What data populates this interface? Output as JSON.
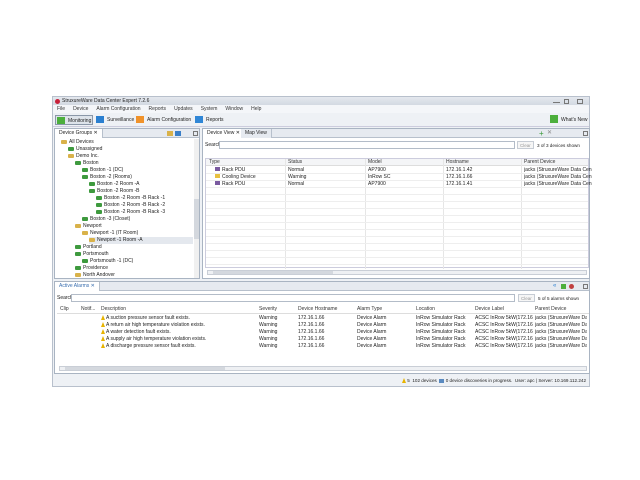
{
  "window": {
    "title": "StruxureWare Data Center Expert 7.2.6"
  },
  "menu": [
    "File",
    "Device",
    "Alarm Configuration",
    "Reports",
    "Updates",
    "System",
    "Window",
    "Help"
  ],
  "toolbar": {
    "monitoring": "Monitoring",
    "surveillance": "Surveillance",
    "alarm_config": "Alarm Configuration",
    "reports": "Reports",
    "whats_new": "What's New"
  },
  "device_groups": {
    "tab": "Device Groups",
    "items": [
      {
        "label": "All Devices",
        "level": 0
      },
      {
        "label": "Unassigned",
        "level": 1,
        "green": true
      },
      {
        "label": "Demo Inc.",
        "level": 1
      },
      {
        "label": "Boston",
        "level": 2,
        "green": true
      },
      {
        "label": "Boston -1 (DC)",
        "level": 3,
        "green": true
      },
      {
        "label": "Boston -2 (Rooms)",
        "level": 3,
        "green": true
      },
      {
        "label": "Boston -2 Room -A",
        "level": 4,
        "green": true
      },
      {
        "label": "Boston -2 Room -B",
        "level": 4,
        "green": true
      },
      {
        "label": "Boston -2 Room -B Rack -1",
        "level": 5,
        "green": true
      },
      {
        "label": "Boston -2 Room -B Rack -2",
        "level": 5,
        "green": true
      },
      {
        "label": "Boston -2 Room -B Rack -3",
        "level": 5,
        "green": true
      },
      {
        "label": "Boston -3 (Closet)",
        "level": 3,
        "green": true
      },
      {
        "label": "Newport",
        "level": 2
      },
      {
        "label": "Newport -1 (IT Room)",
        "level": 3
      },
      {
        "label": "Newport -1 Room -A",
        "level": 4,
        "selected": true
      },
      {
        "label": "Portland",
        "level": 2,
        "green": true
      },
      {
        "label": "Portsmouth",
        "level": 2,
        "green": true
      },
      {
        "label": "Portsmouth -1 (DC)",
        "level": 3,
        "green": true
      },
      {
        "label": "Providence",
        "level": 2,
        "green": true
      },
      {
        "label": "North Andover",
        "level": 2
      }
    ]
  },
  "device_view": {
    "tabs": [
      "Device View",
      "Map View"
    ],
    "search_label": "Search",
    "search_value": "",
    "clear": "Clear",
    "count": "3 of 3 devices shown",
    "columns": [
      "Type",
      "Status",
      "Model",
      "Hostname",
      "Parent Device"
    ],
    "rows": [
      [
        "Rack PDU",
        "Normal",
        "AP7900",
        "172.16.1.42",
        "jacks (StruxureWare Data Cen"
      ],
      [
        "Cooling Device",
        "Warning",
        "InRow SC",
        "172.16.1.66",
        "jacks (StruxureWare Data Cen"
      ],
      [
        "Rack PDU",
        "Normal",
        "AP7900",
        "172.16.1.41",
        "jacks (StruxureWare Data Cen"
      ]
    ]
  },
  "alarms": {
    "tab": "Active Alarms",
    "search_label": "Search",
    "search_value": "",
    "clear": "Clear",
    "count": "5 of 5 alarms shown",
    "columns": [
      "Clip",
      "Notif...",
      "Description",
      "Severity",
      "Device Hostname",
      "Alarm Type",
      "Location",
      "Device Label",
      "Parent Device"
    ],
    "rows": [
      [
        "",
        "",
        "A suction pressure sensor fault exists.",
        "Warning",
        "172.16.1.66",
        "Device Alarm",
        "InRow Simulator Rack",
        "ACSC InRow 5kW(172.16....",
        "jacks (StruxureWare Data"
      ],
      [
        "",
        "",
        "A return air high temperature violation exists.",
        "Warning",
        "172.16.1.66",
        "Device Alarm",
        "InRow Simulator Rack",
        "ACSC InRow 5kW(172.16....",
        "jacks (StruxureWare Data"
      ],
      [
        "",
        "",
        "A water detection fault exists.",
        "Warning",
        "172.16.1.66",
        "Device Alarm",
        "InRow Simulator Rack",
        "ACSC InRow 5kW(172.16....",
        "jacks (StruxureWare Data"
      ],
      [
        "",
        "",
        "A supply air high temperature violation exists.",
        "Warning",
        "172.16.1.66",
        "Device Alarm",
        "InRow Simulator Rack",
        "ACSC InRow 5kW(172.16....",
        "jacks (StruxureWare Data"
      ],
      [
        "",
        "",
        "A discharge pressure sensor fault exists.",
        "Warning",
        "172.16.1.66",
        "Device Alarm",
        "InRow Simulator Rack",
        "ACSC InRow 5kW(172.16....",
        "jacks (StruxureWare Data"
      ]
    ]
  },
  "status": {
    "alarm_count": "5",
    "devices": "102 devices",
    "discoveries": "0 device discoveries in progress.",
    "user_server": "User: apc | Server: 10.169.112.242"
  },
  "colors": {
    "green": "#3e9a3e",
    "folder": "#d9b24a",
    "warning": "#e8b400",
    "selected": "#e4e8ee"
  }
}
